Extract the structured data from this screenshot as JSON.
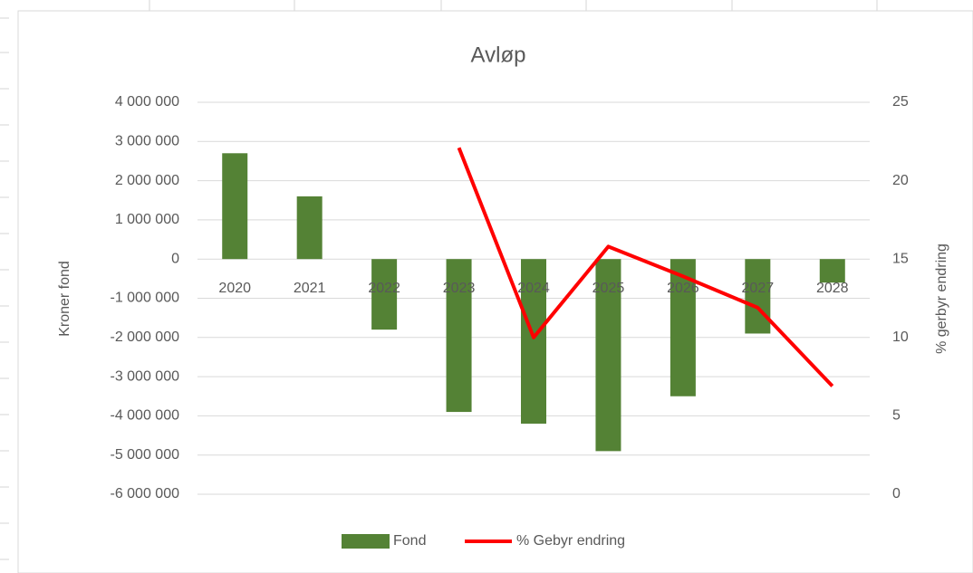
{
  "chart_data": {
    "type": "bar-line",
    "title": "Avløp",
    "y_label": "Kroner fond",
    "y2_label": "% gerbyr endring",
    "categories": [
      "2020",
      "2021",
      "2022",
      "2023",
      "2024",
      "2025",
      "2026",
      "2027",
      "2028"
    ],
    "series": [
      {
        "name": "Fond",
        "type": "bar",
        "color": "#548235",
        "values": [
          2700000,
          1600000,
          -1800000,
          -3900000,
          -4200000,
          -4900000,
          -3500000,
          -1900000,
          -600000
        ]
      },
      {
        "name": "% Gebyr endring",
        "type": "line",
        "axis": "y2",
        "color": "#ff0000",
        "values": [
          null,
          null,
          null,
          22.1,
          10.0,
          15.8,
          13.9,
          11.9,
          6.9
        ]
      }
    ],
    "ylim": [
      -6000000,
      4000000
    ],
    "yticks": [
      {
        "value": -6000000,
        "label": "-6 000 000"
      },
      {
        "value": -5000000,
        "label": "-5 000 000"
      },
      {
        "value": -4000000,
        "label": "-4 000 000"
      },
      {
        "value": -3000000,
        "label": "-3 000 000"
      },
      {
        "value": -2000000,
        "label": "-2 000 000"
      },
      {
        "value": -1000000,
        "label": "-1 000 000"
      },
      0,
      {
        "value": 1000000,
        "label": "1 000 000"
      },
      {
        "value": 2000000,
        "label": "2 000 000"
      },
      {
        "value": 3000000,
        "label": "3 000 000"
      },
      {
        "value": 4000000,
        "label": "4 000 000"
      }
    ],
    "y2lim": [
      0,
      25
    ],
    "y2ticks": [
      0,
      5,
      10,
      15,
      20,
      25
    ],
    "grid": true,
    "legend": "bottom"
  }
}
